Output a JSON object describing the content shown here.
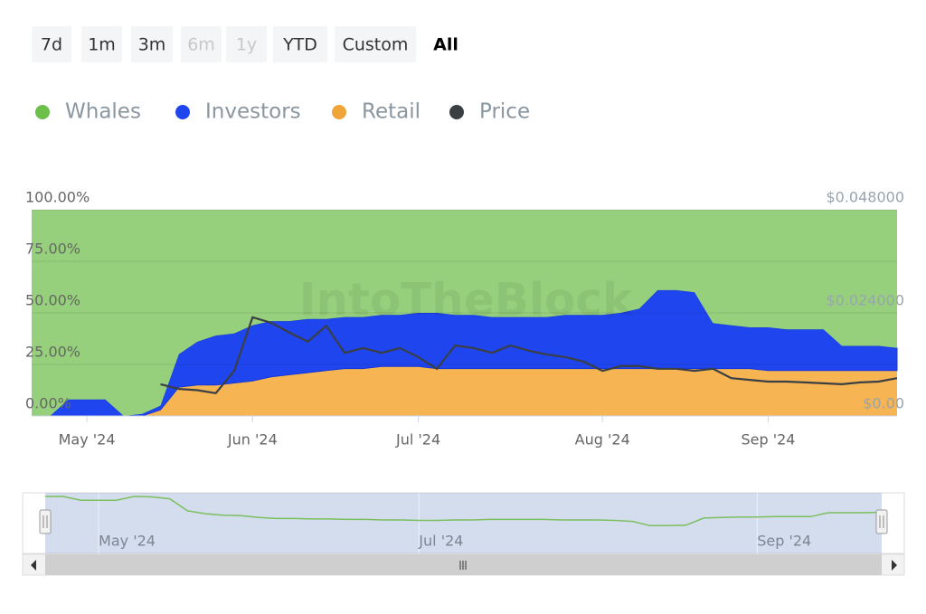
{
  "range_buttons": [
    "7d",
    "1m",
    "3m",
    "6m",
    "1y",
    "YTD",
    "Custom",
    "All"
  ],
  "watermark": "IntoTheBlock",
  "chart_data": {
    "type": "area",
    "stacked": true,
    "categories": [
      null,
      null,
      null,
      "May '24",
      null,
      null,
      null,
      null,
      null,
      null,
      null,
      null,
      "Jun '24",
      null,
      null,
      null,
      null,
      null,
      null,
      null,
      null,
      "Jul '24",
      null,
      null,
      null,
      null,
      null,
      null,
      null,
      null,
      null,
      "Aug '24",
      null,
      null,
      null,
      null,
      null,
      null,
      null,
      null,
      "Sep '24",
      null,
      null,
      null,
      null,
      null,
      null,
      null
    ],
    "series": [
      {
        "name": "Whales",
        "color": "#96d07c",
        "legend_color": "#6cc04a",
        "values": [
          100,
          100,
          92,
          92,
          92,
          100,
          99,
          95,
          70,
          64,
          61,
          60,
          56,
          54,
          54,
          53,
          53,
          52,
          52,
          51,
          51,
          50,
          50,
          51,
          51,
          52,
          52,
          52,
          52,
          51,
          51,
          51,
          50,
          48,
          39,
          39,
          40,
          55,
          56,
          57,
          57,
          58,
          58,
          58,
          66,
          66,
          66,
          67
        ]
      },
      {
        "name": "Investors",
        "color": "#1f45ee",
        "legend_color": "#1f45ee",
        "values": [
          0,
          0,
          8,
          8,
          8,
          0,
          1,
          2,
          16,
          21,
          24,
          24,
          27,
          27,
          26,
          26,
          25,
          25,
          25,
          25,
          25,
          26,
          27,
          26,
          26,
          25,
          25,
          25,
          25,
          26,
          26,
          26,
          27,
          29,
          38,
          38,
          37,
          22,
          21,
          20,
          21,
          20,
          20,
          20,
          12,
          12,
          12,
          11
        ]
      },
      {
        "name": "Retail",
        "color": "#f6b452",
        "legend_color": "#f0a53a",
        "values": [
          0,
          0,
          0,
          0,
          0,
          0,
          0,
          3,
          14,
          15,
          15,
          16,
          17,
          19,
          20,
          21,
          22,
          23,
          23,
          24,
          24,
          24,
          23,
          23,
          23,
          23,
          23,
          23,
          23,
          23,
          23,
          23,
          23,
          23,
          23,
          23,
          23,
          23,
          23,
          23,
          22,
          22,
          22,
          22,
          22,
          22,
          22,
          22
        ]
      },
      {
        "name": "Price",
        "color": "#3a3f44",
        "legend_color": "#3a3f44",
        "axis": "y2",
        "type": "line",
        "values": [
          null,
          null,
          null,
          null,
          null,
          null,
          null,
          0.0074,
          0.0063,
          0.006,
          0.0053,
          0.0105,
          0.023,
          0.0217,
          0.0194,
          0.0173,
          0.021,
          0.0147,
          0.0158,
          0.0147,
          0.0158,
          0.0137,
          0.011,
          0.0164,
          0.0158,
          0.0147,
          0.0164,
          0.0152,
          0.0143,
          0.0137,
          0.0126,
          0.0105,
          0.0116,
          0.0116,
          0.011,
          0.011,
          0.0105,
          0.011,
          0.0088,
          0.0084,
          0.008,
          0.008,
          0.0078,
          0.0076,
          0.0074,
          0.0078,
          0.008,
          0.0088
        ]
      }
    ],
    "ylim": [
      0,
      100
    ],
    "yticks": [
      {
        "value": 0,
        "label": "0.00%"
      },
      {
        "value": 25,
        "label": "25.00%"
      },
      {
        "value": 50,
        "label": "50.00%"
      },
      {
        "value": 75,
        "label": "75.00%"
      },
      {
        "value": 100,
        "label": "100.00%"
      }
    ],
    "y2lim": [
      0,
      0.048
    ],
    "y2ticks": [
      {
        "value": 0,
        "label": "$0.00"
      },
      {
        "value": 0.024,
        "label": "$0.024000"
      },
      {
        "value": 0.048,
        "label": "$0.048000"
      }
    ],
    "grid": true
  }
}
